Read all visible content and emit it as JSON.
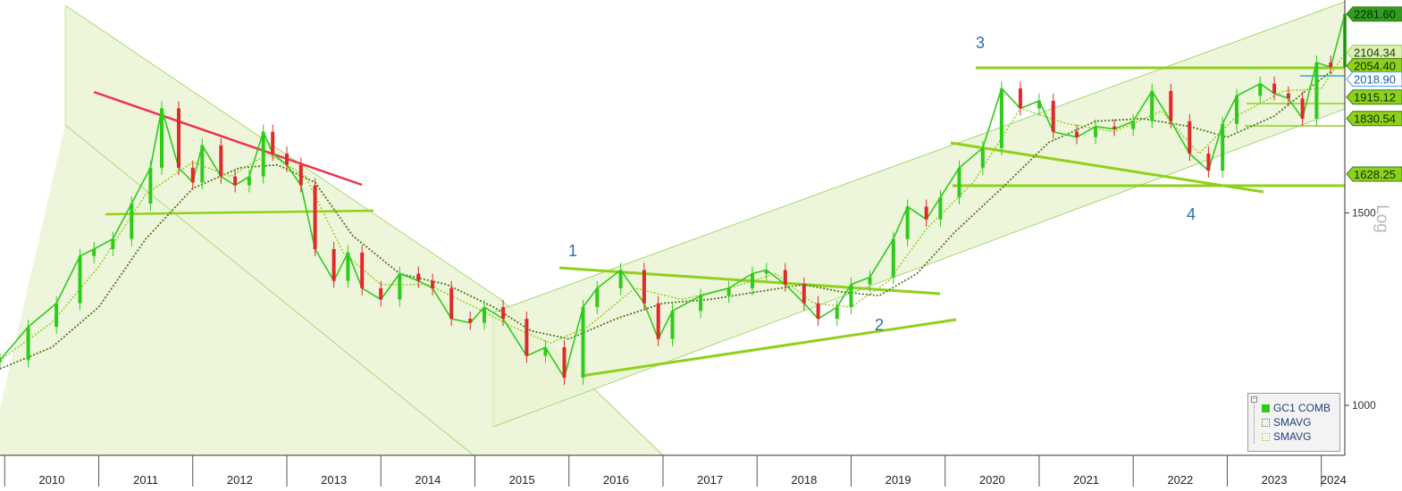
{
  "chart_data": {
    "type": "line",
    "subtype": "candlestick",
    "y_scale": "log",
    "y_axis_label": "Log",
    "ylim": [
      900,
      2350
    ],
    "y_ticks": [
      {
        "value": 1000,
        "label": "1000"
      },
      {
        "value": 1500,
        "label": "1500"
      }
    ],
    "x_ticks": [
      "2010",
      "2011",
      "2012",
      "2013",
      "2014",
      "2015",
      "2016",
      "2017",
      "2018",
      "2019",
      "2020",
      "2021",
      "2022",
      "2023",
      "2024"
    ],
    "price_tags": [
      {
        "value": 2281.6,
        "label": "2281.60",
        "color": "#2e9e1f"
      },
      {
        "value": 2104.34,
        "label": "2104.34",
        "color": "#dcefb0"
      },
      {
        "value": 2054.4,
        "label": "2054.40",
        "color": "#8fd11a"
      },
      {
        "value": 2018.9,
        "label": "2018.90",
        "color": "#3aa0e8"
      },
      {
        "value": 1915.12,
        "label": "1915.12",
        "color": "#8fd11a"
      },
      {
        "value": 1830.54,
        "label": "1830.54",
        "color": "#8fd11a"
      },
      {
        "value": 1628.25,
        "label": "1628.25",
        "color": "#8fd11a"
      }
    ],
    "annotations": [
      "1",
      "2",
      "3",
      "4"
    ],
    "legend": {
      "placement": "bottom-right",
      "items": [
        {
          "name": "GC1 COMB",
          "color": "#2ecc1a"
        },
        {
          "name": "SMAVG",
          "color": "#4a7a1e"
        },
        {
          "name": "SMAVG",
          "color": "#8fd11a"
        }
      ]
    },
    "series": [
      {
        "name": "GC1 COMB",
        "x": [
          2009.95,
          2010.25,
          2010.55,
          2010.8,
          2010.95,
          2011.15,
          2011.35,
          2011.55,
          2011.67,
          2011.85,
          2012.0,
          2012.1,
          2012.3,
          2012.45,
          2012.6,
          2012.75,
          2012.85,
          2013.0,
          2013.15,
          2013.3,
          2013.5,
          2013.65,
          2013.8,
          2014.0,
          2014.2,
          2014.4,
          2014.55,
          2014.75,
          2014.95,
          2015.1,
          2015.3,
          2015.55,
          2015.75,
          2015.95,
          2016.15,
          2016.3,
          2016.55,
          2016.8,
          2016.95,
          2017.1,
          2017.4,
          2017.7,
          2017.95,
          2018.1,
          2018.3,
          2018.5,
          2018.65,
          2018.85,
          2019.0,
          2019.2,
          2019.45,
          2019.6,
          2019.8,
          2019.95,
          2020.15,
          2020.4,
          2020.6,
          2020.8,
          2021.0,
          2021.15,
          2021.4,
          2021.6,
          2021.8,
          2022.0,
          2022.2,
          2022.4,
          2022.6,
          2022.8,
          2022.95,
          2023.1,
          2023.35,
          2023.5,
          2023.65,
          2023.8,
          2023.95,
          2024.1,
          2024.25
        ],
        "values": [
          1100,
          1180,
          1240,
          1370,
          1390,
          1420,
          1530,
          1650,
          1870,
          1650,
          1600,
          1730,
          1620,
          1590,
          1620,
          1780,
          1700,
          1660,
          1590,
          1390,
          1300,
          1380,
          1280,
          1250,
          1320,
          1300,
          1280,
          1200,
          1190,
          1230,
          1200,
          1110,
          1130,
          1060,
          1230,
          1280,
          1330,
          1240,
          1150,
          1220,
          1260,
          1280,
          1320,
          1330,
          1290,
          1240,
          1200,
          1230,
          1290,
          1310,
          1420,
          1520,
          1480,
          1550,
          1650,
          1720,
          1950,
          1870,
          1900,
          1780,
          1760,
          1800,
          1790,
          1820,
          1940,
          1820,
          1700,
          1640,
          1810,
          1920,
          1970,
          1930,
          1910,
          1830,
          2060,
          2040,
          2281.6
        ]
      },
      {
        "name": "SMAVG",
        "x": [
          2009.95,
          2010.5,
          2011.0,
          2011.5,
          2012.0,
          2012.5,
          2012.9,
          2013.3,
          2013.7,
          2014.2,
          2014.7,
          2015.2,
          2015.6,
          2016.0,
          2016.5,
          2017.0,
          2017.5,
          2018.0,
          2018.5,
          2018.9,
          2019.3,
          2019.7,
          2020.1,
          2020.6,
          2021.1,
          2021.6,
          2022.1,
          2022.6,
          2023.0,
          2023.5,
          2023.9,
          2024.1
        ],
        "values": [
          1080,
          1130,
          1230,
          1420,
          1580,
          1650,
          1660,
          1600,
          1430,
          1320,
          1290,
          1230,
          1170,
          1150,
          1200,
          1240,
          1250,
          1270,
          1290,
          1270,
          1260,
          1320,
          1440,
          1580,
          1740,
          1820,
          1830,
          1800,
          1760,
          1840,
          1960,
          2020
        ]
      },
      {
        "name": "SMAVG",
        "x": [
          2009.95,
          2010.5,
          2011.0,
          2011.5,
          2012.0,
          2012.4,
          2012.8,
          2013.2,
          2013.6,
          2014.0,
          2014.5,
          2015.0,
          2015.4,
          2015.8,
          2016.2,
          2016.7,
          2017.2,
          2017.7,
          2018.2,
          2018.6,
          2019.0,
          2019.4,
          2019.8,
          2020.3,
          2020.8,
          2021.3,
          2021.8,
          2022.3,
          2022.7,
          2023.1,
          2023.6,
          2024.0,
          2024.25
        ],
        "values": [
          1100,
          1190,
          1340,
          1560,
          1670,
          1620,
          1700,
          1620,
          1380,
          1290,
          1290,
          1230,
          1180,
          1140,
          1180,
          1280,
          1250,
          1280,
          1320,
          1240,
          1230,
          1300,
          1450,
          1600,
          1870,
          1810,
          1780,
          1860,
          1700,
          1840,
          1940,
          1950,
          2100
        ]
      }
    ]
  }
}
